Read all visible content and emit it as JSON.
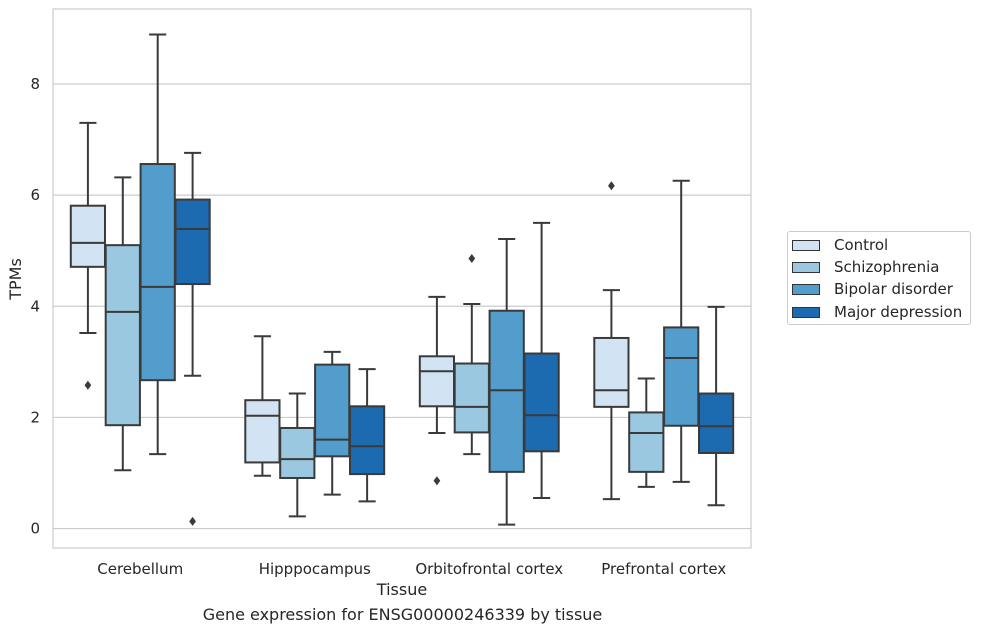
{
  "chart_data": {
    "type": "box",
    "title": "",
    "caption": "Gene expression for ENSG00000246339 by tissue",
    "xlabel": "Tissue",
    "ylabel": "TPMs",
    "ylim": [
      -0.35,
      9.35
    ],
    "yticks": [
      0,
      2,
      4,
      6,
      8
    ],
    "grid": "horizontal",
    "legend_position": "right",
    "categories": [
      "Cerebellum",
      "Hipppocampus",
      "Orbitofrontal cortex",
      "Prefrontal cortex"
    ],
    "series": [
      {
        "name": "Control",
        "color": "#d2e3f3",
        "boxes": [
          {
            "whisker_low": 3.52,
            "q1": 4.71,
            "median": 5.14,
            "q3": 5.81,
            "whisker_high": 7.3,
            "outliers": [
              2.58
            ]
          },
          {
            "whisker_low": 0.95,
            "q1": 1.19,
            "median": 2.03,
            "q3": 2.31,
            "whisker_high": 3.46,
            "outliers": []
          },
          {
            "whisker_low": 1.72,
            "q1": 2.2,
            "median": 2.83,
            "q3": 3.1,
            "whisker_high": 4.17,
            "outliers": [
              0.86
            ]
          },
          {
            "whisker_low": 0.53,
            "q1": 2.19,
            "median": 2.49,
            "q3": 3.43,
            "whisker_high": 4.29,
            "outliers": [
              6.17
            ]
          }
        ]
      },
      {
        "name": "Schizophrenia",
        "color": "#9ac8e0",
        "boxes": [
          {
            "whisker_low": 1.05,
            "q1": 1.86,
            "median": 3.9,
            "q3": 5.1,
            "whisker_high": 6.32,
            "outliers": []
          },
          {
            "whisker_low": 0.22,
            "q1": 0.91,
            "median": 1.25,
            "q3": 1.81,
            "whisker_high": 2.43,
            "outliers": []
          },
          {
            "whisker_low": 1.34,
            "q1": 1.73,
            "median": 2.19,
            "q3": 2.97,
            "whisker_high": 4.04,
            "outliers": [
              4.86
            ]
          },
          {
            "whisker_low": 0.75,
            "q1": 1.02,
            "median": 1.72,
            "q3": 2.09,
            "whisker_high": 2.7,
            "outliers": []
          }
        ]
      },
      {
        "name": "Bipolar disorder",
        "color": "#529dcc",
        "boxes": [
          {
            "whisker_low": 1.34,
            "q1": 2.67,
            "median": 4.35,
            "q3": 6.56,
            "whisker_high": 8.89,
            "outliers": []
          },
          {
            "whisker_low": 0.61,
            "q1": 1.3,
            "median": 1.6,
            "q3": 2.95,
            "whisker_high": 3.18,
            "outliers": []
          },
          {
            "whisker_low": 0.07,
            "q1": 1.02,
            "median": 2.49,
            "q3": 3.92,
            "whisker_high": 5.21,
            "outliers": []
          },
          {
            "whisker_low": 0.84,
            "q1": 1.85,
            "median": 3.07,
            "q3": 3.62,
            "whisker_high": 6.26,
            "outliers": []
          }
        ]
      },
      {
        "name": "Major depression",
        "color": "#1c6aaf",
        "boxes": [
          {
            "whisker_low": 2.75,
            "q1": 4.4,
            "median": 5.39,
            "q3": 5.92,
            "whisker_high": 6.76,
            "outliers": [
              0.13
            ]
          },
          {
            "whisker_low": 0.49,
            "q1": 0.98,
            "median": 1.48,
            "q3": 2.2,
            "whisker_high": 2.87,
            "outliers": []
          },
          {
            "whisker_low": 0.55,
            "q1": 1.39,
            "median": 2.04,
            "q3": 3.15,
            "whisker_high": 5.5,
            "outliers": []
          },
          {
            "whisker_low": 0.42,
            "q1": 1.36,
            "median": 1.84,
            "q3": 2.43,
            "whisker_high": 3.99,
            "outliers": []
          }
        ]
      }
    ]
  }
}
